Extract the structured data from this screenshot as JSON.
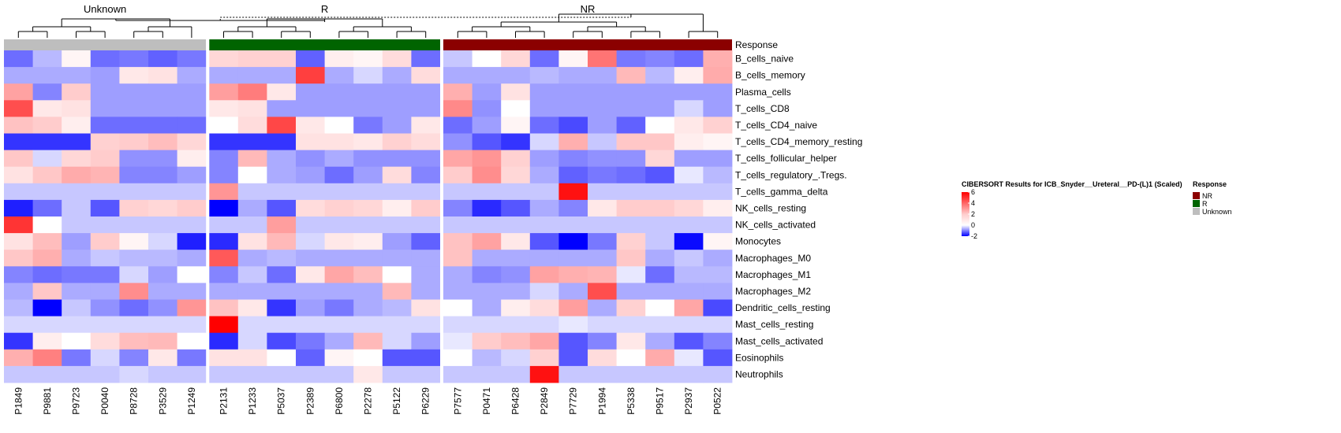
{
  "chart_data": {
    "type": "heatmap",
    "title": "CIBERSORT Results for ICB_Snyder__Ureteral__PD-(L)1 (Scaled)",
    "annotation_label": "Response",
    "groups": [
      {
        "name": "Unknown",
        "color": "#BEBEBE",
        "columns": [
          "P1849",
          "P9881",
          "P9723",
          "P0040",
          "P8728",
          "P3529",
          "P1249"
        ]
      },
      {
        "name": "R",
        "color": "#006400",
        "columns": [
          "P2131",
          "P1233",
          "P5037",
          "P2389",
          "P6800",
          "P2278",
          "P5122",
          "P6229"
        ]
      },
      {
        "name": "NR",
        "color": "#8B0000",
        "columns": [
          "P7577",
          "P0471",
          "P6428",
          "P2849",
          "P7729",
          "P1994",
          "P5338",
          "P9517",
          "P2937",
          "P0522"
        ]
      }
    ],
    "rows": [
      "B_cells_naive",
      "B_cells_memory",
      "Plasma_cells",
      "T_cells_CD8",
      "T_cells_CD4_naive",
      "T_cells_CD4_memory_resting",
      "T_cells_follicular_helper",
      "T_cells_regulatory_.Tregs.",
      "T_cells_gamma_delta",
      "NK_cells_resting",
      "NK_cells_activated",
      "Monocytes",
      "Macrophages_M0",
      "Macrophages_M1",
      "Macrophages_M2",
      "Dendritic_cells_resting",
      "Mast_cells_resting",
      "Mast_cells_activated",
      "Eosinophils",
      "Neutrophils"
    ],
    "values": [
      [
        -1.0,
        -0.4,
        0.1,
        -1.0,
        -0.9,
        -1.1,
        -0.9,
        0.6,
        0.7,
        0.7,
        -1.1,
        0.2,
        0.1,
        0.5,
        -1.0,
        -0.3,
        0.0,
        0.6,
        -1.0,
        0.1,
        2.8,
        -0.9,
        -0.8,
        -1.0,
        1.4
      ],
      [
        -0.5,
        -0.5,
        -0.5,
        -0.6,
        0.3,
        0.4,
        -0.5,
        -0.5,
        -0.5,
        -0.5,
        4.2,
        -0.5,
        -0.2,
        -0.5,
        0.5,
        -0.5,
        -0.5,
        -0.5,
        -0.4,
        -0.5,
        -0.5,
        1.2,
        -0.4,
        0.2,
        1.5
      ],
      [
        1.7,
        -0.8,
        0.8,
        -0.6,
        -0.6,
        -0.6,
        -0.6,
        1.8,
        2.6,
        0.3,
        -0.6,
        -0.6,
        -0.6,
        -0.6,
        -0.6,
        1.4,
        -0.6,
        0.4,
        -0.6,
        -0.6,
        -0.6,
        -0.6,
        -0.6,
        -0.6,
        -0.6
      ],
      [
        3.8,
        0.3,
        0.4,
        -0.6,
        -0.6,
        -0.6,
        -0.6,
        0.3,
        0.4,
        -0.6,
        -0.6,
        -0.6,
        -0.6,
        -0.6,
        -0.6,
        2.3,
        -0.7,
        0.0,
        -0.6,
        -0.6,
        -0.6,
        -0.6,
        -0.6,
        -0.2,
        -0.6
      ],
      [
        1.0,
        0.8,
        0.2,
        -1.0,
        -1.0,
        -1.0,
        -1.0,
        0.0,
        0.5,
        4.0,
        0.3,
        0.0,
        -0.9,
        -0.6,
        0.3,
        -1.0,
        -0.6,
        0.1,
        -1.0,
        -1.3,
        -0.6,
        -1.1,
        0.0,
        0.3,
        0.7
      ],
      [
        -1.5,
        -1.5,
        -1.5,
        0.7,
        0.8,
        1.1,
        0.6,
        -1.5,
        -1.5,
        -1.5,
        0.4,
        0.4,
        0.3,
        0.7,
        0.5,
        -0.7,
        -1.2,
        -1.5,
        -0.2,
        1.4,
        -0.3,
        0.9,
        0.9,
        0.2,
        0.1
      ],
      [
        0.9,
        -0.2,
        0.6,
        0.8,
        -0.7,
        -0.7,
        0.2,
        -0.8,
        1.2,
        -0.5,
        -0.7,
        -0.5,
        -0.7,
        -0.7,
        -0.7,
        1.6,
        2.0,
        0.7,
        -0.6,
        -0.8,
        -0.7,
        -0.7,
        0.6,
        -0.6,
        -0.6
      ],
      [
        0.4,
        0.9,
        1.5,
        1.3,
        -0.8,
        -0.8,
        -0.6,
        -0.8,
        0.0,
        -0.5,
        -0.6,
        -1.0,
        -0.6,
        0.5,
        -0.8,
        0.8,
        2.2,
        0.6,
        -0.5,
        -1.1,
        -0.9,
        -1.0,
        -1.2,
        -0.1,
        -0.4
      ],
      [
        -0.3,
        -0.3,
        -0.3,
        -0.3,
        -0.3,
        -0.3,
        -0.3,
        2.0,
        -0.3,
        -0.3,
        -0.3,
        -0.3,
        -0.3,
        -0.3,
        -0.3,
        -0.3,
        -0.3,
        -0.3,
        -0.3,
        5.5,
        -0.3,
        -0.3,
        -0.3,
        -0.3,
        -0.3
      ],
      [
        -1.7,
        -1.0,
        -0.3,
        -1.2,
        0.7,
        0.6,
        0.8,
        -2.0,
        -0.5,
        -1.2,
        0.5,
        0.7,
        0.6,
        0.2,
        0.8,
        -0.8,
        -1.6,
        -1.2,
        -0.5,
        -0.8,
        0.3,
        0.8,
        0.8,
        0.6,
        0.2
      ],
      [
        4.5,
        0.0,
        -0.3,
        -0.3,
        -0.3,
        -0.3,
        -0.3,
        -0.3,
        -0.3,
        1.8,
        -0.3,
        -0.3,
        -0.3,
        -0.3,
        -0.3,
        -0.3,
        -0.3,
        -0.3,
        -0.3,
        -0.3,
        -0.3,
        -0.3,
        -0.3,
        -0.3,
        -0.3
      ],
      [
        0.4,
        1.1,
        -0.6,
        0.8,
        0.1,
        -0.2,
        -1.7,
        -1.6,
        0.4,
        1.2,
        -0.2,
        0.3,
        0.2,
        -0.6,
        -1.1,
        1.0,
        1.7,
        0.3,
        -1.2,
        -2.1,
        -0.9,
        0.7,
        -0.3,
        -1.9,
        0.1
      ],
      [
        0.9,
        1.4,
        -0.5,
        -0.3,
        -0.4,
        -0.4,
        -0.5,
        3.5,
        -0.5,
        -0.4,
        -0.5,
        -0.5,
        -0.5,
        -0.5,
        -0.5,
        1.0,
        -0.5,
        -0.5,
        -0.5,
        -0.5,
        -0.5,
        0.9,
        -0.5,
        -0.3,
        -0.5
      ],
      [
        -0.8,
        -1.0,
        -0.9,
        -0.9,
        -0.2,
        -0.6,
        0.0,
        -0.8,
        -0.3,
        -1.0,
        0.3,
        1.6,
        1.1,
        0.0,
        -0.5,
        -0.5,
        -0.8,
        -0.7,
        1.7,
        1.4,
        1.3,
        -0.1,
        -1.0,
        -0.4,
        -0.4
      ],
      [
        -0.5,
        0.9,
        -0.5,
        -0.5,
        2.2,
        -0.5,
        -0.5,
        -0.5,
        -0.5,
        -0.5,
        -0.5,
        -0.5,
        -0.5,
        1.2,
        -0.5,
        -0.5,
        -0.5,
        -0.5,
        -0.2,
        -0.5,
        3.8,
        -0.5,
        -0.5,
        -0.5,
        -0.5
      ],
      [
        -0.4,
        -2.2,
        -0.3,
        -0.7,
        -1.0,
        -0.7,
        2.0,
        1.0,
        0.3,
        -1.5,
        -0.6,
        -0.9,
        -0.5,
        -0.4,
        0.4,
        0.0,
        -0.5,
        0.2,
        0.5,
        1.8,
        -0.5,
        0.7,
        0.0,
        1.6,
        -1.3
      ],
      [
        -0.2,
        -0.2,
        -0.2,
        -0.2,
        -0.2,
        -0.2,
        -0.2,
        6.0,
        -0.2,
        -0.2,
        -0.2,
        -0.2,
        -0.2,
        -0.2,
        -0.2,
        -0.2,
        -0.2,
        -0.2,
        -0.2,
        -0.1,
        -0.2,
        -0.2,
        -0.2,
        -0.2,
        -0.2
      ],
      [
        -1.5,
        0.2,
        0.0,
        0.5,
        1.1,
        1.2,
        0.0,
        -1.6,
        -0.2,
        -1.3,
        -0.9,
        -0.5,
        1.2,
        -0.2,
        -0.6,
        -0.1,
        0.8,
        1.1,
        1.6,
        -1.2,
        -0.8,
        0.3,
        -0.5,
        -1.2,
        -0.8
      ],
      [
        1.4,
        2.5,
        -0.9,
        -0.2,
        -0.8,
        0.3,
        -0.9,
        0.4,
        0.4,
        0.0,
        -1.1,
        0.1,
        0.0,
        -1.2,
        -1.2,
        0.0,
        -0.4,
        -0.2,
        0.7,
        -1.2,
        0.5,
        0.0,
        1.5,
        -0.1,
        -1.2
      ],
      [
        -0.3,
        -0.3,
        -0.3,
        -0.3,
        -0.2,
        -0.3,
        -0.3,
        -0.3,
        -0.3,
        -0.3,
        -0.3,
        -0.3,
        0.3,
        -0.3,
        -0.3,
        -0.3,
        -0.3,
        -0.3,
        5.5,
        -0.3,
        -0.3,
        -0.3,
        -0.3,
        -0.3,
        -0.3
      ]
    ],
    "color_scale": {
      "low": "#0000FF",
      "mid": "#FFFFFF",
      "high": "#FF0000",
      "min": -2,
      "max": 6,
      "mid_value": 0
    },
    "legend_ticks": [
      "6",
      "4",
      "2",
      "0",
      "-2"
    ],
    "legend_placement": "right",
    "response_legend": {
      "title": "Response",
      "entries": [
        {
          "label": "NR",
          "color": "#8B0000"
        },
        {
          "label": "R",
          "color": "#006400"
        },
        {
          "label": "Unknown",
          "color": "#BEBEBE"
        }
      ]
    }
  }
}
